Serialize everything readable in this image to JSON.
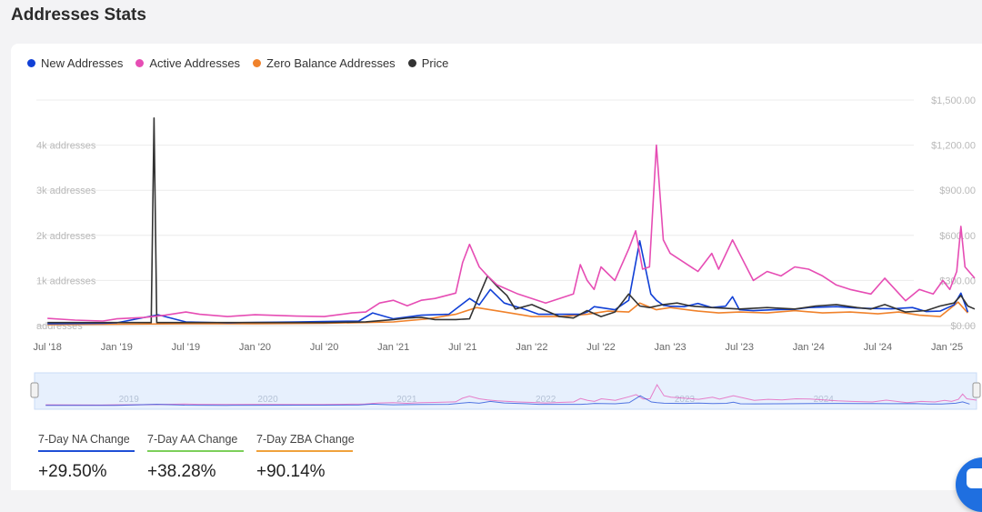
{
  "page": {
    "title": "Addresses Stats"
  },
  "legend": [
    {
      "label": "New Addresses",
      "color": "#1140d6"
    },
    {
      "label": "Active Addresses",
      "color": "#e64db4"
    },
    {
      "label": "Zero Balance Addresses",
      "color": "#f0822b"
    },
    {
      "label": "Price",
      "color": "#333333"
    }
  ],
  "kpis": [
    {
      "label": "7-Day NA Change",
      "value": "+29.50%",
      "color": "#1f4fd6"
    },
    {
      "label": "7-Day AA Change",
      "value": "+38.28%",
      "color": "#7ccf5a"
    },
    {
      "label": "7-Day ZBA Change",
      "value": "+90.14%",
      "color": "#f0a23c"
    }
  ],
  "chart_data": {
    "type": "line",
    "x_tick_labels": [
      "Jul '18",
      "Jan '19",
      "Jul '19",
      "Jan '20",
      "Jul '20",
      "Jan '21",
      "Jul '21",
      "Jan '22",
      "Jul '22",
      "Jan '23",
      "Jul '23",
      "Jan '24",
      "Jul '24",
      "Jan '25"
    ],
    "y_left_ticks": [
      "addresses",
      "1k addresses",
      "2k addresses",
      "3k addresses",
      "4k addresses"
    ],
    "y_left_values": [
      0,
      1000,
      2000,
      3000,
      4000
    ],
    "y_right_ticks": [
      "$0.00",
      "$300.00",
      "$600.00",
      "$900.00",
      "$1,200.00",
      "$1,500.00"
    ],
    "y_right_values": [
      0,
      300,
      600,
      900,
      1200,
      1500
    ],
    "ylim_left": [
      0,
      5000
    ],
    "ylim_right": [
      0,
      1500
    ],
    "navigator_year_labels": [
      "2019",
      "2020",
      "2021",
      "2022",
      "2023",
      "2024"
    ],
    "navigator_year_positions": [
      2019.0,
      2020.0,
      2021.0,
      2022.0,
      2023.0,
      2024.0
    ],
    "grid": true,
    "legend_position": "top-left",
    "series": [
      {
        "name": "New Addresses",
        "axis": "left",
        "color": "#1140d6",
        "x": [
          2018.5,
          2018.9,
          2019.0,
          2019.3,
          2019.5,
          2019.8,
          2020.0,
          2020.3,
          2020.5,
          2020.75,
          2020.85,
          2021.0,
          2021.2,
          2021.4,
          2021.55,
          2021.62,
          2021.7,
          2021.8,
          2021.95,
          2022.05,
          2022.2,
          2022.35,
          2022.4,
          2022.45,
          2022.6,
          2022.7,
          2022.78,
          2022.86,
          2022.9,
          2022.95,
          2023.0,
          2023.1,
          2023.2,
          2023.3,
          2023.4,
          2023.45,
          2023.5,
          2023.6,
          2023.75,
          2023.9,
          2024.0,
          2024.2,
          2024.35,
          2024.45,
          2024.6,
          2024.75,
          2024.85,
          2024.95,
          2025.05,
          2025.1,
          2025.15
        ],
        "y": [
          40,
          50,
          60,
          240,
          80,
          60,
          70,
          80,
          90,
          100,
          280,
          150,
          230,
          250,
          600,
          460,
          800,
          500,
          360,
          250,
          250,
          250,
          300,
          420,
          350,
          560,
          1880,
          700,
          560,
          450,
          430,
          420,
          490,
          400,
          430,
          640,
          350,
          330,
          350,
          360,
          400,
          420,
          390,
          380,
          370,
          400,
          310,
          320,
          460,
          720,
          300
        ]
      },
      {
        "name": "Active Addresses",
        "axis": "left",
        "color": "#e64db4",
        "x": [
          2018.5,
          2018.7,
          2018.9,
          2019.0,
          2019.2,
          2019.35,
          2019.5,
          2019.6,
          2019.8,
          2020.0,
          2020.3,
          2020.5,
          2020.7,
          2020.8,
          2020.9,
          2021.0,
          2021.1,
          2021.2,
          2021.3,
          2021.45,
          2021.5,
          2021.55,
          2021.62,
          2021.68,
          2021.75,
          2021.9,
          2022.0,
          2022.1,
          2022.2,
          2022.3,
          2022.35,
          2022.4,
          2022.45,
          2022.5,
          2022.6,
          2022.7,
          2022.75,
          2022.8,
          2022.85,
          2022.9,
          2022.95,
          2023.0,
          2023.1,
          2023.2,
          2023.3,
          2023.35,
          2023.45,
          2023.6,
          2023.7,
          2023.8,
          2023.9,
          2024.0,
          2024.1,
          2024.2,
          2024.3,
          2024.45,
          2024.55,
          2024.7,
          2024.8,
          2024.9,
          2024.97,
          2025.02,
          2025.07,
          2025.1,
          2025.13,
          2025.2
        ],
        "y": [
          160,
          120,
          100,
          150,
          180,
          230,
          300,
          250,
          200,
          240,
          210,
          200,
          280,
          300,
          500,
          560,
          440,
          560,
          600,
          720,
          1400,
          1800,
          1300,
          1100,
          900,
          700,
          600,
          500,
          600,
          700,
          1350,
          1000,
          800,
          1300,
          1000,
          1700,
          2100,
          1250,
          1300,
          4000,
          1900,
          1600,
          1400,
          1200,
          1600,
          1250,
          1900,
          1000,
          1200,
          1100,
          1300,
          1250,
          1100,
          900,
          800,
          700,
          1050,
          550,
          800,
          700,
          1000,
          800,
          1200,
          2200,
          1300,
          1050
        ]
      },
      {
        "name": "Zero Balance Addresses",
        "axis": "left",
        "color": "#f0822b",
        "x": [
          2018.5,
          2019.0,
          2019.5,
          2020.0,
          2020.5,
          2021.0,
          2021.25,
          2021.45,
          2021.6,
          2021.8,
          2022.0,
          2022.2,
          2022.4,
          2022.55,
          2022.7,
          2022.78,
          2022.9,
          2023.0,
          2023.2,
          2023.35,
          2023.5,
          2023.7,
          2023.9,
          2024.1,
          2024.3,
          2024.5,
          2024.65,
          2024.8,
          2024.95,
          2025.08,
          2025.15
        ],
        "y": [
          20,
          30,
          40,
          40,
          50,
          80,
          150,
          250,
          400,
          300,
          200,
          200,
          250,
          320,
          300,
          500,
          350,
          400,
          320,
          280,
          300,
          280,
          330,
          280,
          300,
          260,
          300,
          230,
          200,
          520,
          280
        ]
      },
      {
        "name": "Price",
        "axis": "right",
        "color": "#333333",
        "x": [
          2018.5,
          2018.9,
          2019.0,
          2019.2,
          2019.25,
          2019.27,
          2019.29,
          2019.31,
          2019.33,
          2019.5,
          2020.0,
          2020.5,
          2020.8,
          2021.0,
          2021.1,
          2021.2,
          2021.3,
          2021.45,
          2021.55,
          2021.62,
          2021.68,
          2021.75,
          2021.82,
          2021.88,
          2022.0,
          2022.1,
          2022.2,
          2022.3,
          2022.4,
          2022.5,
          2022.6,
          2022.7,
          2022.78,
          2022.85,
          2022.95,
          2023.05,
          2023.15,
          2023.3,
          2023.5,
          2023.7,
          2023.9,
          2024.05,
          2024.2,
          2024.35,
          2024.45,
          2024.55,
          2024.7,
          2024.85,
          2024.95,
          2025.05,
          2025.1,
          2025.15,
          2025.2
        ],
        "y": [
          20,
          20,
          20,
          20,
          20,
          1380,
          20,
          20,
          20,
          20,
          20,
          20,
          25,
          40,
          50,
          55,
          40,
          40,
          45,
          200,
          330,
          260,
          200,
          110,
          140,
          100,
          60,
          50,
          100,
          60,
          90,
          210,
          130,
          120,
          140,
          150,
          130,
          120,
          110,
          120,
          110,
          130,
          140,
          120,
          110,
          140,
          90,
          100,
          130,
          150,
          200,
          130,
          110
        ]
      }
    ]
  }
}
